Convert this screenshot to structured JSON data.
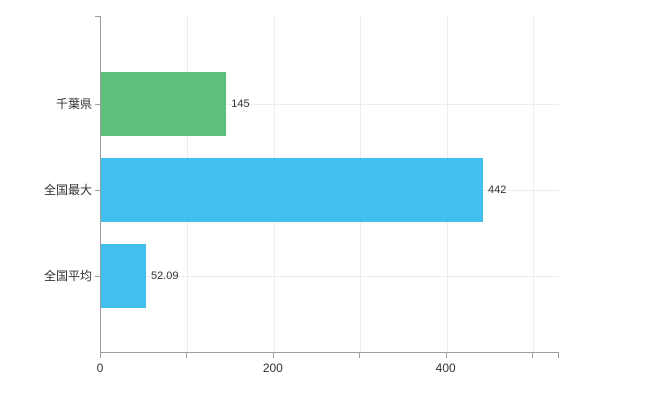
{
  "chart_data": {
    "type": "bar",
    "orientation": "horizontal",
    "title": "",
    "xlabel": "",
    "ylabel": "",
    "categories": [
      "千葉県",
      "全国最大",
      "全国平均"
    ],
    "values": [
      145,
      442,
      52.09
    ],
    "value_labels": [
      "145",
      "442",
      "52.09"
    ],
    "series": [
      {
        "name": "",
        "values": [
          145,
          442,
          52.09
        ],
        "colors": [
          "#5dbe7d",
          "#41bfef",
          "#41bfef"
        ]
      }
    ],
    "xlim": [
      0,
      530
    ],
    "x_tick_labels": [
      "0",
      "200",
      "400"
    ],
    "x_tick_values": [
      0,
      200,
      400
    ],
    "x_grid_values": [
      100,
      200,
      300,
      400,
      500
    ],
    "grid": true,
    "legend_position": "none",
    "background": "#ffffff"
  },
  "colors": {
    "axis": "#9e9e9e",
    "grid": "#ececec",
    "text": "#333333",
    "bar_green": "#5dbe7d",
    "bar_blue": "#41bfef"
  }
}
